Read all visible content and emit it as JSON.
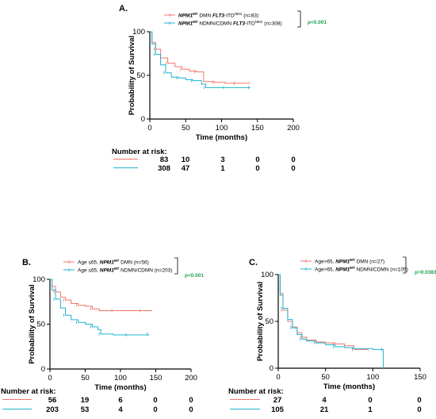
{
  "colors": {
    "dmn": "#f0746e",
    "other": "#1fb3d0",
    "pvalue": "#21a152"
  },
  "chart_data": [
    {
      "type": "line",
      "panel_label": "A.",
      "xlabel": "Time (months)",
      "ylabel": "Probability of Survival",
      "xlim": [
        0,
        200
      ],
      "ylim": [
        0,
        100
      ],
      "x_ticks": [
        "0",
        "50",
        "100",
        "150",
        "200"
      ],
      "y_ticks": [
        "0",
        "50",
        "100"
      ],
      "legend_placement": "top",
      "p_value": "p<0.001",
      "series": [
        {
          "name": "NPM1MT DMN FLT3-ITDNEG (n=83)",
          "legend_italic": "NPM1",
          "legend_sup": "MT",
          "legend_mid": " DMN ",
          "legend_italic2": "FLT3",
          "legend_tail": "-ITD",
          "legend_sup2": "NEG",
          "legend_end": " (n=83)",
          "color_key": "dmn",
          "points": [
            [
              0,
              100
            ],
            [
              3,
              88
            ],
            [
              8,
              80
            ],
            [
              15,
              70
            ],
            [
              25,
              64
            ],
            [
              35,
              60
            ],
            [
              45,
              57
            ],
            [
              55,
              55
            ],
            [
              65,
              54
            ],
            [
              75,
              43
            ],
            [
              90,
              42
            ],
            [
              105,
              41
            ],
            [
              120,
              41
            ],
            [
              140,
              41
            ]
          ]
        },
        {
          "name": "NPM1MT NDMN/CDMN FLT3-ITDNEG (n=308)",
          "legend_italic": "NPM1",
          "legend_sup": "MT",
          "legend_mid": " NDMN/CDMN ",
          "legend_italic2": "FLT3",
          "legend_tail": "-ITD",
          "legend_sup2": "NEG",
          "legend_end": " (n=308)",
          "color_key": "other",
          "points": [
            [
              0,
              100
            ],
            [
              3,
              86
            ],
            [
              8,
              74
            ],
            [
              15,
              62
            ],
            [
              22,
              53
            ],
            [
              30,
              48
            ],
            [
              40,
              47
            ],
            [
              50,
              45
            ],
            [
              60,
              44
            ],
            [
              72,
              40
            ],
            [
              78,
              36
            ],
            [
              90,
              36
            ],
            [
              105,
              36
            ],
            [
              120,
              36
            ],
            [
              140,
              36
            ]
          ]
        }
      ],
      "risk": {
        "header": "Number at risk:",
        "rows": [
          [
            "83",
            "10",
            "3",
            "0",
            "0"
          ],
          [
            "308",
            "47",
            "1",
            "0",
            "0"
          ]
        ]
      }
    },
    {
      "type": "line",
      "panel_label": "B.",
      "xlabel": "Time (months)",
      "ylabel": "Probability of Survival",
      "xlim": [
        0,
        200
      ],
      "ylim": [
        0,
        100
      ],
      "x_ticks": [
        "0",
        "50",
        "100",
        "150",
        "200"
      ],
      "y_ticks": [
        "0",
        "50",
        "100"
      ],
      "legend_placement": "top",
      "p_value": "p<0.001",
      "series": [
        {
          "name": "Age ≤65, NPM1MT DMN (n=56)",
          "legend_pre": "Age ≤65, ",
          "legend_italic": "NPM1",
          "legend_sup": "MT",
          "legend_end": " DMN  (n=56)",
          "color_key": "dmn",
          "points": [
            [
              0,
              100
            ],
            [
              3,
              92
            ],
            [
              8,
              86
            ],
            [
              15,
              80
            ],
            [
              22,
              77
            ],
            [
              30,
              73
            ],
            [
              40,
              71
            ],
            [
              50,
              70
            ],
            [
              60,
              67
            ],
            [
              70,
              65
            ],
            [
              90,
              65
            ],
            [
              110,
              65
            ],
            [
              130,
              65
            ],
            [
              145,
              65
            ]
          ]
        },
        {
          "name": "Age ≤65, NPM1MT NDMN/CDMN (n=203)",
          "legend_pre": "Age ≤65, ",
          "legend_italic": "NPM1",
          "legend_sup": "MT",
          "legend_end": " NDMN/CDMN (n=203)",
          "color_key": "other",
          "points": [
            [
              0,
              100
            ],
            [
              3,
              88
            ],
            [
              8,
              78
            ],
            [
              15,
              68
            ],
            [
              22,
              60
            ],
            [
              30,
              55
            ],
            [
              40,
              52
            ],
            [
              50,
              50
            ],
            [
              60,
              47
            ],
            [
              68,
              44
            ],
            [
              72,
              39
            ],
            [
              90,
              38
            ],
            [
              110,
              38
            ],
            [
              125,
              38
            ],
            [
              140,
              39
            ]
          ]
        }
      ],
      "risk": {
        "header": "Number at risk:",
        "rows": [
          [
            "56",
            "19",
            "6",
            "0",
            "0"
          ],
          [
            "203",
            "53",
            "4",
            "0",
            "0"
          ]
        ]
      }
    },
    {
      "type": "line",
      "panel_label": "C.",
      "xlabel": "Time (months)",
      "ylabel": "Probability of Survival",
      "xlim": [
        0,
        150
      ],
      "ylim": [
        0,
        100
      ],
      "x_ticks": [
        "0",
        "50",
        "100",
        "150"
      ],
      "y_ticks": [
        "0",
        "50",
        "100"
      ],
      "legend_placement": "top",
      "p_value": "p=0.0383",
      "series": [
        {
          "name": "Age>65, NPM1MT DMN (n=27)",
          "legend_pre": "Age>65, ",
          "legend_italic": "NPM1",
          "legend_sup": "MT",
          "legend_end": " DMN (n=27)",
          "color_key": "dmn",
          "points": [
            [
              0,
              100
            ],
            [
              2,
              80
            ],
            [
              5,
              62
            ],
            [
              10,
              50
            ],
            [
              15,
              44
            ],
            [
              20,
              38
            ],
            [
              25,
              33
            ],
            [
              30,
              30
            ],
            [
              40,
              28
            ],
            [
              50,
              27
            ],
            [
              60,
              26
            ],
            [
              70,
              24
            ],
            [
              80,
              20
            ],
            [
              95,
              19
            ]
          ]
        },
        {
          "name": "Age>65, NPM1MT NDMN/CDMN (n=105)",
          "legend_pre": "Age>65, ",
          "legend_italic": "NPM1",
          "legend_sup": "MT",
          "legend_end": " NDMN/CDMN (n=105)",
          "color_key": "other",
          "points": [
            [
              0,
              100
            ],
            [
              2,
              78
            ],
            [
              5,
              64
            ],
            [
              10,
              52
            ],
            [
              15,
              43
            ],
            [
              20,
              36
            ],
            [
              25,
              31
            ],
            [
              30,
              29
            ],
            [
              40,
              27
            ],
            [
              50,
              25
            ],
            [
              60,
              23
            ],
            [
              70,
              22
            ],
            [
              80,
              21
            ],
            [
              100,
              20
            ],
            [
              111,
              20
            ],
            [
              111,
              0
            ]
          ]
        }
      ],
      "risk": {
        "header": "Number at risk:",
        "rows": [
          [
            "27",
            "4",
            "0",
            "0"
          ],
          [
            "105",
            "21",
            "1",
            "0"
          ]
        ]
      }
    }
  ]
}
